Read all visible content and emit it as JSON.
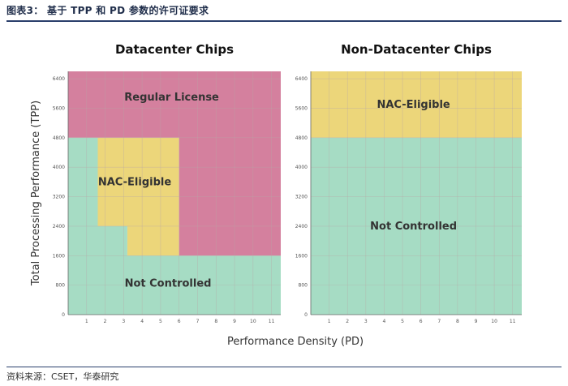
{
  "figure": {
    "title": "图表3： 基于 TPP 和 PD 参数的许可证要求",
    "source": "资料来源：CSET，华泰研究"
  },
  "colors": {
    "regular_license": "#d4809e",
    "nac_eligible": "#ecd67a",
    "not_controlled": "#a6dcc4",
    "rule": "#2a3f6b"
  },
  "chart_data": [
    {
      "type": "area",
      "title": "Datacenter Chips",
      "xlabel": "Performance Density (PD)",
      "ylabel": "Total Processing Performance (TPP)",
      "xlim": [
        0,
        11.5
      ],
      "ylim": [
        0,
        6600
      ],
      "x_ticks": [
        1,
        2,
        3,
        4,
        5,
        6,
        7,
        8,
        9,
        10,
        11
      ],
      "y_ticks": [
        0,
        800,
        1600,
        2400,
        3200,
        4000,
        4800,
        5600,
        6400
      ],
      "grid": true,
      "regions": [
        {
          "label": "Regular License",
          "color_key": "regular_license",
          "polygon": [
            [
              0,
              4800
            ],
            [
              0,
              6600
            ],
            [
              11.5,
              6600
            ],
            [
              11.5,
              1600
            ],
            [
              6,
              1600
            ],
            [
              6,
              4800
            ]
          ],
          "label_at": [
            5.6,
            5900
          ]
        },
        {
          "label": "NAC-Eligible",
          "color_key": "nac_eligible",
          "polygon": [
            [
              1.6,
              2400
            ],
            [
              3.2,
              2400
            ],
            [
              3.2,
              1600
            ],
            [
              6,
              1600
            ],
            [
              6,
              4800
            ],
            [
              1.6,
              4800
            ]
          ],
          "label_at": [
            3.6,
            3600
          ]
        },
        {
          "label": "Not Controlled",
          "color_key": "not_controlled",
          "polygon": [
            [
              0,
              0
            ],
            [
              11.5,
              0
            ],
            [
              11.5,
              1600
            ],
            [
              3.2,
              1600
            ],
            [
              3.2,
              2400
            ],
            [
              1.6,
              2400
            ],
            [
              1.6,
              4800
            ],
            [
              0,
              4800
            ]
          ],
          "label_at": [
            5.4,
            850
          ]
        }
      ]
    },
    {
      "type": "area",
      "title": "Non-Datacenter Chips",
      "xlabel": "",
      "ylabel": "",
      "xlim": [
        0,
        11.5
      ],
      "ylim": [
        0,
        6600
      ],
      "x_ticks": [
        1,
        2,
        3,
        4,
        5,
        6,
        7,
        8,
        9,
        10,
        11
      ],
      "y_ticks": [
        0,
        800,
        1600,
        2400,
        3200,
        4000,
        4800,
        5600,
        6400
      ],
      "grid": true,
      "regions": [
        {
          "label": "NAC-Eligible",
          "color_key": "nac_eligible",
          "polygon": [
            [
              0,
              4800
            ],
            [
              0,
              6600
            ],
            [
              11.5,
              6600
            ],
            [
              11.5,
              4800
            ]
          ],
          "label_at": [
            5.6,
            5700
          ]
        },
        {
          "label": "Not Controlled",
          "color_key": "not_controlled",
          "polygon": [
            [
              0,
              0
            ],
            [
              0,
              4800
            ],
            [
              11.5,
              4800
            ],
            [
              11.5,
              0
            ]
          ],
          "label_at": [
            5.6,
            2400
          ]
        }
      ]
    }
  ]
}
